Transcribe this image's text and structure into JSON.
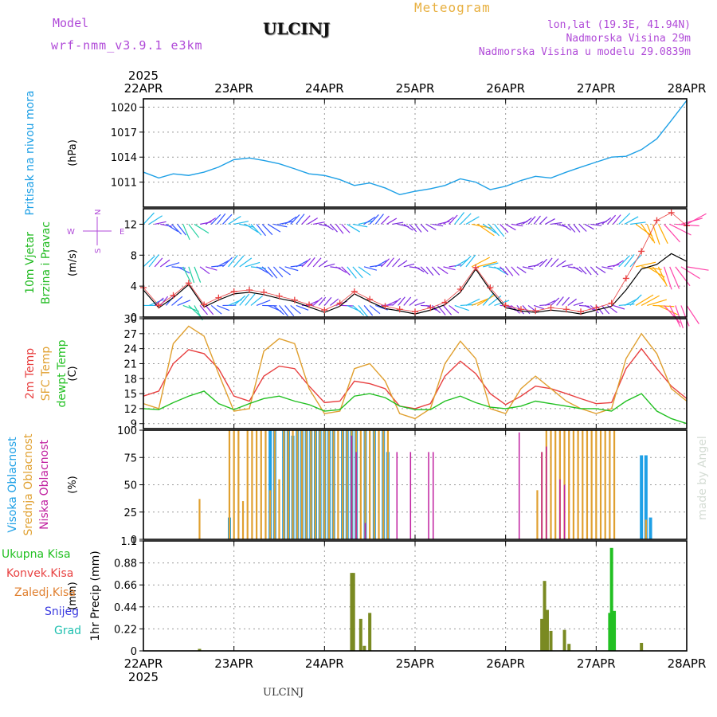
{
  "header": {
    "model_label": "Model",
    "model_name": "wrf-nmm_v3.9.1 e3km",
    "station": "ULCINJ",
    "title": "Meteogram",
    "lonlat": "lon,lat (19.3E, 41.94N)",
    "altitude": "Nadmorska Visina 29m",
    "model_altitude": "Nadmorska Visina u modelu 29.0839m"
  },
  "footer": {
    "station": "ULCINJ"
  },
  "watermark": "made by Angel",
  "colors": {
    "pressure": "#1ea0e6",
    "temp2m": "#e84040",
    "sfc_temp": "#e0a030",
    "dewpoint": "#22c022",
    "cloud_high": "#1ea0e6",
    "cloud_mid": "#e0a030",
    "cloud_low": "#c020a0",
    "precip_total": "#22c022",
    "precip_conv": "#e84040",
    "precip_frozen": "#e08030",
    "snow": "#3a3ae0",
    "hail": "#20c0b0"
  },
  "chart_data": [
    {
      "type": "line",
      "id": "pressure",
      "ylabel": "Pritisak na nivou mora",
      "unit": "(hPa)",
      "ylim": [
        1008,
        1021
      ],
      "yticks": [
        1011,
        1014,
        1017,
        1020
      ],
      "x_days": [
        0,
        0.17,
        0.33,
        0.5,
        0.67,
        0.83,
        1.0,
        1.17,
        1.33,
        1.5,
        1.67,
        1.83,
        2.0,
        2.17,
        2.33,
        2.5,
        2.67,
        2.83,
        3.0,
        3.17,
        3.33,
        3.5,
        3.67,
        3.83,
        4.0,
        4.17,
        4.33,
        4.5,
        4.67,
        4.83,
        5.0,
        5.17,
        5.33,
        5.5,
        5.67,
        5.83,
        6.0
      ],
      "values": [
        1012.2,
        1011.5,
        1012.0,
        1011.8,
        1012.2,
        1012.8,
        1013.7,
        1013.9,
        1013.6,
        1013.2,
        1012.6,
        1012.0,
        1011.8,
        1011.3,
        1010.6,
        1010.9,
        1010.3,
        1009.5,
        1009.9,
        1010.2,
        1010.6,
        1011.4,
        1011.0,
        1010.1,
        1010.5,
        1011.2,
        1011.7,
        1011.5,
        1012.2,
        1012.8,
        1013.4,
        1014.0,
        1014.1,
        1014.9,
        1016.2,
        1018.4,
        1020.8
      ]
    },
    {
      "type": "line",
      "id": "wind",
      "ylabel": "10m Vjetar",
      "ylabel2": "Brzina i Pravac",
      "unit": "(m/s)",
      "ylim": [
        0,
        14
      ],
      "yticks": [
        0,
        4,
        8,
        12
      ],
      "compass": [
        "N",
        "S",
        "W",
        "E"
      ],
      "x_days": [
        0,
        0.17,
        0.33,
        0.5,
        0.67,
        0.83,
        1.0,
        1.17,
        1.33,
        1.5,
        1.67,
        1.83,
        2.0,
        2.17,
        2.33,
        2.5,
        2.67,
        2.83,
        3.0,
        3.17,
        3.33,
        3.5,
        3.67,
        3.83,
        4.0,
        4.17,
        4.33,
        4.5,
        4.67,
        4.83,
        5.0,
        5.17,
        5.33,
        5.5,
        5.67,
        5.83,
        6.0
      ],
      "speed": [
        3.5,
        1.2,
        2.5,
        4.2,
        1.3,
        2.2,
        3.0,
        3.2,
        2.9,
        2.4,
        2.0,
        1.3,
        0.6,
        1.4,
        3.0,
        2.0,
        1.1,
        0.8,
        0.4,
        0.9,
        1.6,
        3.2,
        6.2,
        3.5,
        1.2,
        0.8,
        0.6,
        0.9,
        0.7,
        0.4,
        0.9,
        1.4,
        3.5,
        6.2,
        6.8,
        8.2,
        7.2
      ],
      "gust": [
        3.8,
        1.5,
        2.8,
        4.4,
        1.6,
        2.5,
        3.3,
        3.5,
        3.2,
        2.7,
        2.2,
        1.6,
        0.9,
        1.8,
        3.3,
        2.3,
        1.4,
        1.0,
        0.7,
        1.2,
        1.9,
        3.6,
        6.4,
        3.8,
        1.5,
        1.0,
        0.8,
        1.2,
        1.0,
        0.7,
        1.2,
        1.8,
        5.0,
        8.5,
        12.5,
        13.5,
        11.8
      ],
      "arrow_levels": [
        1.5,
        6.5,
        12.0
      ]
    },
    {
      "type": "line",
      "id": "temperature",
      "ylabel": "2m Temp",
      "ylabel2": "SFC Temp",
      "ylabel3": "dewpt Temp",
      "unit": "(C)",
      "ylim": [
        8,
        30
      ],
      "yticks": [
        9,
        12,
        15,
        18,
        21,
        24,
        27,
        30
      ],
      "x_days": [
        0,
        0.17,
        0.33,
        0.5,
        0.67,
        0.83,
        1.0,
        1.17,
        1.33,
        1.5,
        1.67,
        1.83,
        2.0,
        2.17,
        2.33,
        2.5,
        2.67,
        2.83,
        3.0,
        3.17,
        3.33,
        3.5,
        3.67,
        3.83,
        4.0,
        4.17,
        4.33,
        4.5,
        4.67,
        4.83,
        5.0,
        5.17,
        5.33,
        5.5,
        5.67,
        5.83,
        6.0
      ],
      "series": [
        {
          "name": "2m Temp",
          "values": [
            14.5,
            15.5,
            21.0,
            23.8,
            23.0,
            20.0,
            14.5,
            13.5,
            18.5,
            20.5,
            20.0,
            16.5,
            13.2,
            13.5,
            17.5,
            17.0,
            16.0,
            12.5,
            12.0,
            13.0,
            18.5,
            21.5,
            19.0,
            15.0,
            12.8,
            14.5,
            16.5,
            16.0,
            15.0,
            14.0,
            13.0,
            13.2,
            20.0,
            24.0,
            20.0,
            16.5,
            14.0
          ]
        },
        {
          "name": "SFC Temp",
          "values": [
            13.0,
            12.0,
            25.0,
            28.5,
            26.5,
            19.0,
            11.5,
            12.0,
            23.5,
            26.0,
            25.0,
            16.0,
            11.0,
            11.5,
            20.0,
            21.0,
            17.5,
            11.0,
            10.0,
            12.0,
            21.0,
            25.5,
            22.0,
            12.0,
            11.0,
            16.0,
            18.5,
            16.0,
            13.5,
            12.0,
            11.0,
            12.0,
            22.0,
            27.0,
            23.0,
            16.0,
            13.5
          ]
        },
        {
          "name": "dewpt Temp",
          "values": [
            12.0,
            11.8,
            13.2,
            14.5,
            15.5,
            13.0,
            11.8,
            13.0,
            14.0,
            14.5,
            13.5,
            12.8,
            11.5,
            11.8,
            14.5,
            15.0,
            14.2,
            12.5,
            11.8,
            11.8,
            13.5,
            14.5,
            13.2,
            12.3,
            12.0,
            12.5,
            13.5,
            13.0,
            12.5,
            12.0,
            12.0,
            11.5,
            13.5,
            15.0,
            11.5,
            10.0,
            9.0
          ]
        }
      ]
    },
    {
      "type": "bar",
      "id": "clouds",
      "ylabel": "Visoka Oblacnost",
      "ylabel2": "Srednja Oblacnost",
      "ylabel3": "Niska Oblacnost",
      "unit": "(%)",
      "ylim": [
        0,
        100
      ],
      "yticks": [
        0,
        25,
        50,
        75,
        100
      ],
      "series": [
        {
          "name": "Visoka Oblacnost",
          "x_days": [
            1.4,
            1.45,
            1.55,
            1.6,
            1.65,
            1.7,
            1.75,
            1.8,
            1.85,
            1.9,
            1.95,
            2.0,
            2.05,
            2.1,
            2.2,
            2.25,
            2.3,
            2.35,
            2.45,
            2.55,
            0.95,
            2.65,
            2.7,
            5.5,
            5.55,
            5.6
          ],
          "values": [
            100,
            100,
            100,
            100,
            95,
            100,
            100,
            100,
            100,
            100,
            100,
            100,
            100,
            100,
            100,
            100,
            100,
            100,
            100,
            100,
            20,
            100,
            80,
            77,
            77,
            20
          ]
        },
        {
          "name": "Srednja Oblacnost",
          "x_days": [
            0.62,
            0.95,
            1.0,
            1.05,
            1.1,
            1.15,
            1.2,
            1.25,
            1.3,
            1.35,
            1.4,
            1.45,
            1.5,
            1.55,
            1.6,
            1.65,
            1.7,
            1.75,
            1.8,
            1.85,
            1.9,
            1.95,
            2.0,
            2.05,
            2.1,
            2.15,
            2.2,
            2.25,
            2.3,
            2.35,
            2.4,
            2.45,
            2.5,
            2.55,
            2.6,
            2.65,
            2.7,
            4.35,
            4.4,
            4.45,
            4.5,
            4.55,
            4.6,
            4.65,
            4.7,
            4.75,
            4.8,
            4.85,
            4.9,
            4.95,
            5.0,
            5.05,
            5.1,
            5.15,
            5.2,
            5.55
          ],
          "values": [
            37,
            100,
            100,
            100,
            35,
            100,
            100,
            100,
            100,
            100,
            45,
            100,
            55,
            100,
            100,
            100,
            100,
            100,
            100,
            100,
            100,
            100,
            100,
            100,
            100,
            100,
            100,
            100,
            100,
            100,
            100,
            100,
            100,
            100,
            100,
            100,
            100,
            45,
            80,
            100,
            100,
            100,
            100,
            100,
            100,
            100,
            100,
            100,
            100,
            100,
            100,
            100,
            100,
            100,
            100,
            18
          ]
        },
        {
          "name": "Niska Oblacnost",
          "x_days": [
            2.3,
            2.35,
            2.45,
            2.8,
            2.95,
            3.15,
            3.2,
            4.15,
            4.4,
            4.45,
            4.6,
            4.65
          ],
          "values": [
            95,
            80,
            15,
            80,
            80,
            80,
            80,
            98,
            80,
            85,
            55,
            50
          ]
        }
      ]
    },
    {
      "type": "bar",
      "id": "precip",
      "ylabel": "1hr Precip",
      "unit": "(mm)",
      "legend": [
        "Ukupna Kisa",
        "Konvek.Kisa",
        "Zaledj.Kisa",
        "Snijeg",
        "Grad"
      ],
      "ylim": [
        0,
        1.1
      ],
      "yticks": [
        0,
        0.22,
        0.44,
        0.66,
        0.88,
        1.1
      ],
      "x_days": [
        0.62,
        2.3,
        2.32,
        2.4,
        2.44,
        2.5,
        4.4,
        4.43,
        4.46,
        4.5,
        4.65,
        4.7,
        5.15,
        5.17,
        5.2,
        5.5
      ],
      "values": [
        0.02,
        0.78,
        0.78,
        0.32,
        0.05,
        0.38,
        0.32,
        0.7,
        0.41,
        0.2,
        0.21,
        0.07,
        0.38,
        1.03,
        0.4,
        0.08
      ]
    }
  ],
  "time_axis": {
    "year_top": "2025",
    "year_bottom": "2025",
    "labels": [
      "22APR",
      "23APR",
      "24APR",
      "25APR",
      "26APR",
      "27APR",
      "28APR"
    ]
  }
}
